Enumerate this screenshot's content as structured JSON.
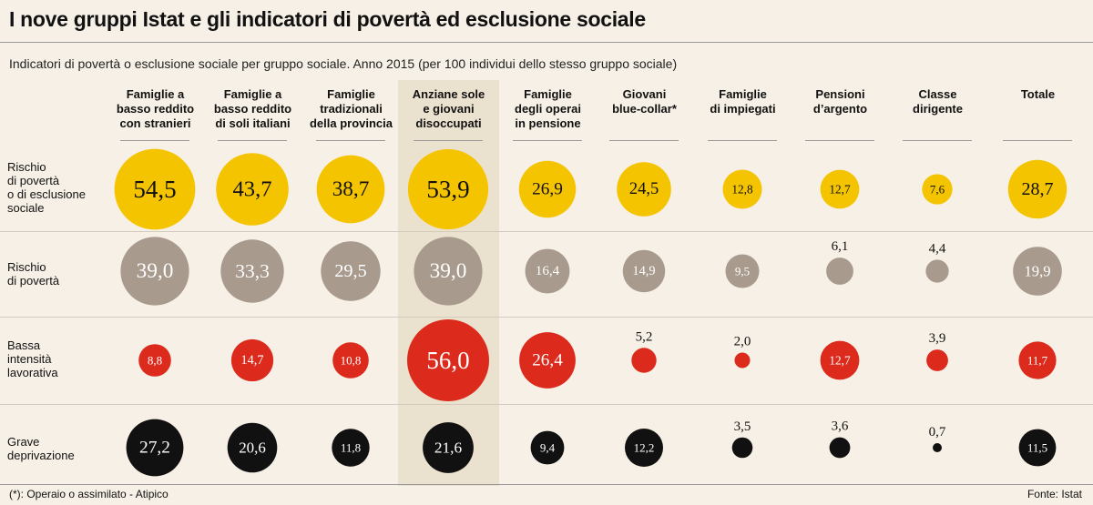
{
  "title": "I nove gruppi Istat e gli indicatori di povertà ed esclusione sociale",
  "subtitle": "Indicatori di povertà o esclusione sociale per gruppo sociale. Anno 2015 (per 100 individui dello stesso gruppo sociale)",
  "footnote": "(*): Operaio o assimilato - Atipico",
  "source": "Fonte: Istat",
  "colors": {
    "rischio_poverta_esclusione": "#f5c400",
    "rischio_poverta": "#a89a8d",
    "bassa_intensita": "#dc2a1c",
    "grave_deprivazione": "#111111",
    "highlight_band": "#ebe1cf"
  },
  "chart_data": {
    "type": "table",
    "categories": [
      "Famiglie a basso reddito con stranieri",
      "Famiglie a basso reddito di soli italiani",
      "Famiglie tradizionali della provincia",
      "Anziane sole e giovani disoccupati",
      "Famiglie degli operai in pensione",
      "Giovani blue-collar*",
      "Famiglie di impiegati",
      "Pensioni d’argento",
      "Classe dirigente",
      "Totale"
    ],
    "category_lines": [
      "Famiglie  a\nbasso reddito\ncon stranieri",
      "Famiglie  a\nbasso reddito\ndi soli italiani",
      "Famiglie\ntradizionali\ndella provincia",
      "Anziane sole\ne giovani\ndisoccupati",
      "Famiglie\ndegli operai\nin pensione",
      "Giovani\nblue-collar*",
      "Famiglie\ndi impiegati",
      "Pensioni\nd’argento",
      "Classe\ndirigente",
      "Totale"
    ],
    "series": [
      {
        "name": "Rischio di povertà o di esclusione sociale",
        "label_lines": "Rischio\ndi povertà\no di esclusione\nsociale",
        "color": "#f5c400",
        "text_color": "#111111",
        "values": [
          54.5,
          43.7,
          38.7,
          53.9,
          26.9,
          24.5,
          12.8,
          12.7,
          7.6,
          28.7
        ],
        "labels": [
          "54,5",
          "43,7",
          "38,7",
          "53,9",
          "26,9",
          "24,5",
          "12,8",
          "12,7",
          "7,6",
          "28,7"
        ],
        "label_outside": [
          false,
          false,
          false,
          false,
          false,
          false,
          false,
          false,
          false,
          false
        ]
      },
      {
        "name": "Rischio di povertà",
        "label_lines": "Rischio\ndi povertà",
        "color": "#a89a8d",
        "text_color": "#ffffff",
        "values": [
          39.0,
          33.3,
          29.5,
          39.0,
          16.4,
          14.9,
          9.5,
          6.1,
          4.4,
          19.9
        ],
        "labels": [
          "39,0",
          "33,3",
          "29,5",
          "39,0",
          "16,4",
          "14,9",
          "9,5",
          "6,1",
          "4,4",
          "19,9"
        ],
        "label_outside": [
          false,
          false,
          false,
          false,
          false,
          false,
          false,
          true,
          true,
          false
        ]
      },
      {
        "name": "Bassa intensità lavorativa",
        "label_lines": "Bassa\nintensità\nlavorativa",
        "color": "#dc2a1c",
        "text_color": "#ffffff",
        "values": [
          8.8,
          14.7,
          10.8,
          56.0,
          26.4,
          5.2,
          2.0,
          12.7,
          3.9,
          11.7
        ],
        "labels": [
          "8,8",
          "14,7",
          "10,8",
          "56,0",
          "26,4",
          "5,2",
          "2,0",
          "12,7",
          "3,9",
          "11,7"
        ],
        "label_outside": [
          false,
          false,
          false,
          false,
          false,
          true,
          true,
          false,
          true,
          false
        ]
      },
      {
        "name": "Grave deprivazione",
        "label_lines": "Grave\ndeprivazione",
        "color": "#111111",
        "text_color": "#ffffff",
        "values": [
          27.2,
          20.6,
          11.8,
          21.6,
          9.4,
          12.2,
          3.5,
          3.6,
          0.7,
          11.5
        ],
        "labels": [
          "27,2",
          "20,6",
          "11,8",
          "21,6",
          "9,4",
          "12,2",
          "3,5",
          "3,6",
          "0,7",
          "11,5"
        ],
        "label_outside": [
          false,
          false,
          false,
          false,
          false,
          false,
          true,
          true,
          true,
          false
        ]
      }
    ],
    "highlighted_category_index": 3
  }
}
